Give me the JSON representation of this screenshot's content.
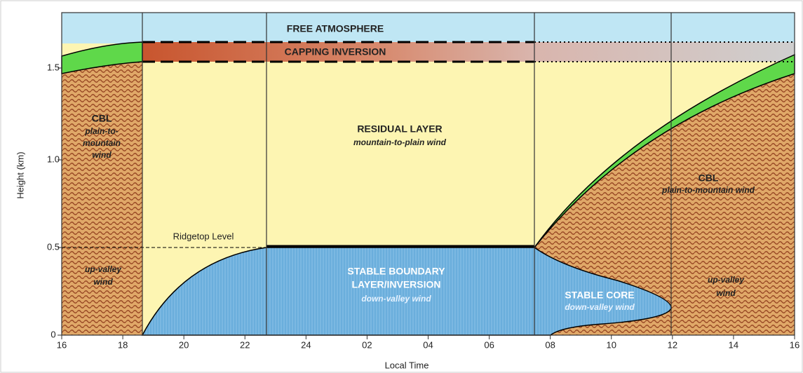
{
  "axes": {
    "y_label": "Height (km)",
    "x_label": "Local Time",
    "y_ticks": [
      "0",
      "0.5",
      "1.0",
      "1.5"
    ],
    "x_ticks": [
      "16",
      "18",
      "20",
      "22",
      "24",
      "02",
      "04",
      "06",
      "08",
      "10",
      "12",
      "14",
      "16"
    ]
  },
  "layers": {
    "free_atmosphere": "FREE ATMOSPHERE",
    "capping_inversion": "CAPPING INVERSION",
    "residual_layer": {
      "title": "RESIDUAL LAYER",
      "wind": "mountain-to-plain wind"
    },
    "ridgetop": "Ridgetop Level",
    "cbl_left": {
      "title": "CBL",
      "wind": [
        "plain-to-",
        "mountain",
        "wind"
      ]
    },
    "up_valley_left": [
      "up-valley",
      "wind"
    ],
    "stable_boundary": {
      "title": [
        "STABLE BOUNDARY",
        "LAYER/INVERSION"
      ],
      "wind": "down-valley wind"
    },
    "stable_core": {
      "title": "STABLE CORE",
      "wind": "down-valley wind"
    },
    "cbl_right": {
      "title": "CBL",
      "wind": "plain-to-mountain wind"
    },
    "up_valley_right": [
      "up-valley",
      "wind"
    ]
  }
}
